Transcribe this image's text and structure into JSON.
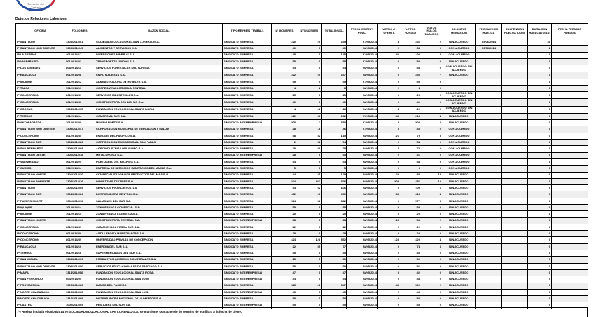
{
  "logo": {
    "line1": "Dirección del",
    "line2": "Trabajo",
    "colors": [
      "#c8233a",
      "#2a4d9c"
    ]
  },
  "department": "Dpto. de Relaciones Laborales",
  "columns": [
    "OFICINA",
    "FOLIO NEG.",
    "RAZON SOCIAL",
    "TIPO REPRES. TRABAJ.",
    "N° HOMBRES",
    "N° MUJERES",
    "TOTAL INVOL.",
    "FECHA ESCRUT. FINAL",
    "VOTOS U. OFERTA",
    "VOTOS HUELGA",
    "VOTOS NULOS BLANCOS",
    "SOLICITUD MEDIACION",
    "FECHA INICIO HUELGA",
    "SUSPENSION HUELGA (DIAS)",
    "DURACION HUELGA (DIAS)",
    "FECHA TERMINO HUELGA"
  ],
  "rows": [
    [
      "IP SANTIAGO",
      "1301/2014/01",
      "SOCIEDAD EDUCACIONAL SAN LORENZO S.A.",
      "SINDICATO EMPRESA",
      "220",
      "25",
      "245",
      "27/05/2014",
      "4",
      "236",
      "2",
      "SIN ACUERDO",
      "05/06/2014",
      "",
      "40",
      ""
    ],
    [
      "IP SANTIAGO NOR ORIENTE",
      "1306/2014/45",
      "ALIMENTOS Y SERVICIOS S.A.",
      "SINDICATO EMPRESA",
      "40",
      "0",
      "40",
      "28/05/2014",
      "2",
      "38",
      "0",
      "CON ACUERDO",
      "03/06/2014",
      "",
      "2",
      ""
    ],
    [
      "IP LA SERENA",
      "401/2014/17",
      "INVERSIONES MINERAS S.A.",
      "SINDICATO EMPRESA",
      "145",
      "0",
      "145",
      "27/05/2014",
      "40",
      "100",
      "5",
      "CON ACUERDO",
      "",
      "",
      "0",
      ""
    ],
    [
      "IP VALPARAISO",
      "501/2014/23",
      "TRANSPORTES UNIDOS S.A.",
      "SINDICATO EMPRESA",
      "55",
      "0",
      "55",
      "27/05/2014",
      "0",
      "55",
      "0",
      "SIN ACUERDO",
      "",
      "",
      "0",
      ""
    ],
    [
      "IP LOS ANGELES",
      "808/2014/11",
      "SERVICIOS FORESTALES DEL SUR S.A.",
      "SINDICATO EMPRESA",
      "54",
      "0",
      "54",
      "26/05/2014",
      "0",
      "54",
      "0",
      "CON ACUERDO SIN ACUERDO",
      "",
      "",
      "0",
      ""
    ],
    [
      "IP RANCAGUA",
      "601/2014/08",
      "CMPC MADERAS S.A.",
      "SINDICATO EMPRESA",
      "222",
      "25",
      "247",
      "28/05/2014",
      "0",
      "240",
      "7",
      "SIN ACUERDO",
      "",
      "",
      "0",
      ""
    ],
    [
      "IP IQUIQUE",
      "101/2014/12",
      "ADMINISTRADORA DE HOTELES S.A.",
      "SINDICATO EMPRESA",
      "55",
      "0",
      "55",
      "27/05/2014",
      "0",
      "55",
      "0",
      "",
      "",
      "",
      "0",
      ""
    ],
    [
      "IP TALCA",
      "701/2014/19",
      "COOPERATIVA AGRICOLA CENTRAL",
      "SINDICATO EMPRESA",
      "4",
      "2",
      "6",
      "28/05/2014",
      "2",
      "4",
      "0",
      "",
      "",
      "",
      "0",
      ""
    ],
    [
      "IP CONCEPCION",
      "801/2014/31",
      "SERVICIOS INDUSTRIALES S.A.",
      "SINDICATO EMPRESA",
      "25",
      "0",
      "25",
      "28/05/2014",
      "0",
      "25",
      "0",
      "CON ACUERDO SIN ACUERDO",
      "",
      "",
      "0",
      ""
    ],
    [
      "IP CONCEPCION",
      "801/2014/33",
      "CONSTRUCTORA DEL BIO BIO S.A.",
      "SINDICATO EMPRESA",
      "40",
      "0",
      "40",
      "28/05/2014",
      "0",
      "40",
      "0",
      "CON ACUERDO SIN ACUERDO",
      "",
      "",
      "0",
      ""
    ],
    [
      "IP OSORNO",
      "1001/2014/05",
      "FUNDACION EDUCACIONAL SANTA MARIA",
      "SINDICATO EMPRESA",
      "4",
      "22",
      "26",
      "26/05/2014",
      "4",
      "22",
      "0",
      "CON ACUERDO SIN ACUERDO",
      "",
      "",
      "0",
      ""
    ],
    [
      "IP TEMUCO",
      "901/2014/14",
      "COMERCIAL SUR S.A.",
      "SINDICATO EMPRESA",
      "222",
      "40",
      "262",
      "27/05/2014",
      "45",
      "213",
      "4",
      "SIN ACUERDO",
      "",
      "",
      "0",
      ""
    ],
    [
      "IP ANTOFAGASTA",
      "201/2014/20",
      "MINERA NORTE S.A.",
      "SINDICATO INTEREMPRESA",
      "508",
      "2",
      "510",
      "27/05/2014",
      "5",
      "502",
      "3",
      "SIN ACUERDO",
      "",
      "",
      "0",
      ""
    ],
    [
      "IP SANTIAGO NOR ORIENTE",
      "1306/2014/47",
      "CORPORACION MUNICIPAL DE EDUCACION Y SALUD",
      "SINDICATO EMPRESA",
      "28",
      "18",
      "46",
      "27/05/2014",
      "3",
      "43",
      "0",
      "CON ACUERDO",
      "",
      "",
      "0",
      ""
    ],
    [
      "IP CONCEPCION",
      "801/2014/35",
      "ENVASES DEL PACIFICO S.A.",
      "SINDICATO EMPRESA",
      "58",
      "52",
      "110",
      "28/05/2014",
      "26",
      "79",
      "5",
      "CON ACUERDO",
      "",
      "",
      "0",
      ""
    ],
    [
      "IP SANTIAGO SUR",
      "1302/2014/22",
      "CORPORACION EDUCACIONAL SAN PABLO",
      "SINDICATO EMPRESA",
      "2",
      "52",
      "54",
      "28/05/2014",
      "0",
      "54",
      "0",
      "CON ACUERDO",
      "",
      "",
      "0",
      ""
    ],
    [
      "IP SAN BERNARDO",
      "1309/2014/08",
      "AGROINDUSTRIAL DEL MAIPO S.A.",
      "SINDICATO EMPRESA",
      "28",
      "50",
      "78",
      "28/05/2014",
      "5",
      "73",
      "0",
      "CON ACUERDO",
      "",
      "",
      "0",
      ""
    ],
    [
      "IP SANTIAGO OESTE",
      "1303/2014/18",
      "METALURGICA S.A.",
      "SINDICATO INTEREMPRESA",
      "28",
      "5",
      "33",
      "28/05/2014",
      "2",
      "31",
      "0",
      "CON ACUERDO",
      "",
      "",
      "0",
      ""
    ],
    [
      "IP VALPARAISO",
      "501/2014/25",
      "PORTUARIA DEL PACIFICO S.A.",
      "SINDICATO EMPRESA",
      "54",
      "0",
      "54",
      "28/05/2014",
      "0",
      "54",
      "0",
      "CON ACUERDO",
      "",
      "",
      "0",
      ""
    ],
    [
      "IP CURICO",
      "702/2014/04",
      "EMPRESA DE SERVICIOS SANITARIOS DEL MAULE S.A.",
      "SINDICATO EMPRESA",
      "5",
      "0",
      "5",
      "28/05/2014",
      "0",
      "5",
      "0",
      "CON ACUERDO",
      "",
      "",
      "0",
      ""
    ],
    [
      "IP SANTIAGO NORTE",
      "1304/2014/30",
      "COMERCIALIZADORA DE PRODUCTOS DEL MAR S.A.",
      "SINDICATO EMPRESA",
      "44",
      "85",
      "129",
      "28/05/2014",
      "22",
      "88",
      "19",
      "SIN ACUERDO",
      "",
      "",
      "0",
      ""
    ],
    [
      "IP SANTIAGO PONIENTE",
      "1305/2014/16",
      "INDUSTRIAS TEXTILES S.A.",
      "SINDICATO EMPRESA",
      "524",
      "452",
      "976",
      "28/05/2014",
      "508",
      "456",
      "12",
      "SIN ACUERDO",
      "",
      "",
      "0",
      ""
    ],
    [
      "IP SANTIAGO",
      "1301/2014/05",
      "SERVICIOS FINANCIEROS S.A.",
      "SINDICATO EMPRESA",
      "54",
      "52",
      "106",
      "28/05/2014",
      "0",
      "100",
      "6",
      "SIN ACUERDO",
      "",
      "",
      "0",
      ""
    ],
    [
      "IP SANTIAGO SUR",
      "1302/2014/24",
      "DISTRIBUIDORA CENTRAL S.A.",
      "SINDICATO EMPRESA",
      "462",
      "28",
      "490",
      "28/05/2014",
      "68",
      "418",
      "4",
      "SIN ACUERDO",
      "",
      "",
      "0",
      ""
    ],
    [
      "IP PUERTO MONTT",
      "1004/2014/12",
      "SALMONES DEL SUR S.A.",
      "SINDICATO EMPRESA",
      "524",
      "58",
      "582",
      "28/05/2014",
      "0",
      "577",
      "5",
      "SIN ACUERDO",
      "",
      "",
      "0",
      ""
    ],
    [
      "IP IQUIQUE",
      "101/2014/14",
      "ZONA FRANCA COMERCIAL S.A.",
      "SINDICATO EMPRESA",
      "55",
      "0",
      "55",
      "28/05/2014",
      "0",
      "55",
      "0",
      "SIN ACUERDO",
      "",
      "",
      "0",
      ""
    ],
    [
      "IP IQUIQUE",
      "101/2014/15",
      "ZONA FRANCA LOGISTICA S.A.",
      "SINDICATO EMPRESA",
      "20",
      "0",
      "20",
      "28/05/2014",
      "0",
      "20",
      "0",
      "SIN ACUERDO",
      "",
      "",
      "0",
      ""
    ],
    [
      "IP SANTIAGO NORTE",
      "1304/2014/32",
      "CONSTRUCTORA CENTRAL S.A.",
      "SINDICATO INTEREMPRESA",
      "88",
      "0",
      "88",
      "28/05/2014",
      "28",
      "58",
      "2",
      "SIN ACUERDO",
      "",
      "",
      "0",
      ""
    ],
    [
      "IP CONCEPCION",
      "801/2014/37",
      "CAMANCHACA PESCA SUR S.A.",
      "SINDICATO EMPRESA",
      "22",
      "0",
      "22",
      "28/05/2014",
      "0",
      "22",
      "0",
      "SIN ACUERDO",
      "",
      "",
      "0",
      ""
    ],
    [
      "IP CONCEPCION",
      "801/2014/38",
      "ASTILLEROS Y MAESTRANZAS S.A.",
      "SINDICATO EMPRESA",
      "28",
      "0",
      "28",
      "28/05/2014",
      "0",
      "28",
      "0",
      "SIN ACUERDO",
      "",
      "",
      "0",
      ""
    ],
    [
      "IP CONCEPCION",
      "801/2014/39",
      "UNIVERSIDAD PRIVADA DE CONCEPCION",
      "SINDICATO EMPRESA",
      "424",
      "128",
      "552",
      "28/05/2014",
      "128",
      "420",
      "4",
      "SIN ACUERDO",
      "",
      "",
      "0",
      ""
    ],
    [
      "IP RANCAGUA",
      "601/2014/10",
      "ENERGIA DEL SUR S.A.",
      "SINDICATO EMPRESA",
      "22",
      "55",
      "77",
      "28/05/2014",
      "0",
      "74",
      "3",
      "SIN ACUERDO",
      "",
      "",
      "0",
      ""
    ],
    [
      "IP TEMUCO",
      "901/2014/16",
      "SUPERMERCADOS DEL SUR S.A.",
      "SINDICATO EMPRESA",
      "45",
      "0",
      "45",
      "28/05/2014",
      "2",
      "43",
      "0",
      "SIN ACUERDO",
      "",
      "",
      "0",
      ""
    ],
    [
      "IP SAN MIGUEL",
      "1308/2014/09",
      "PRODUCTOS QUIMICOS INDUSTRIALES S.A.",
      "SINDICATO EMPRESA",
      "25",
      "5",
      "30",
      "28/05/2014",
      "0",
      "30",
      "0",
      "SIN ACUERDO",
      "",
      "",
      "0",
      ""
    ],
    [
      "IP SANTIAGO NOR ORIENTE",
      "1306/2014/50",
      "SERVICIOS EDUCACIONALES DE SANTIAGO S.A.",
      "SINDICATO EMPRESA",
      "58",
      "0",
      "58",
      "28/05/2014",
      "0",
      "56",
      "2",
      "SIN ACUERDO",
      "",
      "",
      "0",
      ""
    ],
    [
      "IP MAIPU",
      "1311/2014/06",
      "FUNDACION EDUCACIONAL SANTA ROSA",
      "SINDICATO INTEREMPRESA",
      "47",
      "0",
      "47",
      "28/05/2014",
      "5",
      "42",
      "0",
      "SIN ACUERDO",
      "",
      "",
      "0",
      ""
    ],
    [
      "IP SAN FERNANDO",
      "603/2014/05",
      "FUNDACION EDUCACIONAL SAN JOSE",
      "SINDICATO INTEREMPRESA",
      "44",
      "0",
      "44",
      "28/05/2014",
      "0",
      "44",
      "0",
      "SIN ACUERDO",
      "",
      "",
      "0",
      ""
    ],
    [
      "IP PROVIDENCIA",
      "1307/2014/20",
      "BANCO DEL PACIFICO",
      "SINDICATO EMPRESA",
      "525",
      "22",
      "547",
      "28/05/2014",
      "45",
      "500",
      "2",
      "SIN ACUERDO",
      "",
      "",
      "0",
      ""
    ],
    [
      "IP NORTE CHACABUCO",
      "1310/2014/08",
      "FUNDACION EDUCACIONAL SAN LUIS",
      "SINDICATO INTEREMPRESA",
      "45",
      "0",
      "45",
      "28/05/2014",
      "0",
      "45",
      "0",
      "SIN ACUERDO",
      "",
      "",
      "0",
      ""
    ],
    [
      "IP NORTE CHACABUCO",
      "1310/2014/09",
      "DISTRIBUIDORA NACIONAL DE ALIMENTOS S.A.",
      "SINDICATO EMPRESA",
      "58",
      "0",
      "58",
      "28/05/2014",
      "0",
      "58",
      "0",
      "SIN ACUERDO",
      "",
      "",
      "0",
      ""
    ],
    [
      "IP CASTRO",
      "1005/2014/05",
      "PESQUERA DEL SUR S.A.",
      "SINDICATO INTEREMPRESA",
      "55",
      "0",
      "55",
      "28/05/2014",
      "0",
      "55",
      "0",
      "SIN ACUERDO",
      "",
      "",
      "0",
      ""
    ]
  ],
  "footnote": "(*) Huelga iniciada el 05/06/2014 en SOCIEDAD EDUCACIONAL SAN LORENZO S.A. se mantiene, con acuerdo de termino de conflicto a la fecha de cierre."
}
